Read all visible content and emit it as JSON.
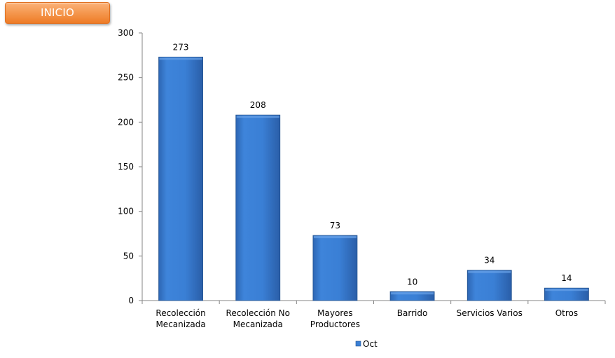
{
  "nav": {
    "inicio_label": "INICIO"
  },
  "chart_data": {
    "type": "bar",
    "categories": [
      [
        "Recolección",
        "Mecanizada"
      ],
      [
        "Recolección No",
        "Mecanizada"
      ],
      [
        "Mayores",
        "Productores"
      ],
      [
        "Barrido"
      ],
      [
        "Servicios Varios"
      ],
      [
        "Otros"
      ]
    ],
    "series": [
      {
        "name": "Oct",
        "values": [
          273,
          208,
          73,
          10,
          34,
          14
        ],
        "color": "#3a7fd5"
      }
    ],
    "ylim": [
      0,
      300
    ],
    "yticks": [
      0,
      50,
      100,
      150,
      200,
      250,
      300
    ],
    "show_data_labels": true,
    "grid": false,
    "legend_position": "bottom-center"
  }
}
